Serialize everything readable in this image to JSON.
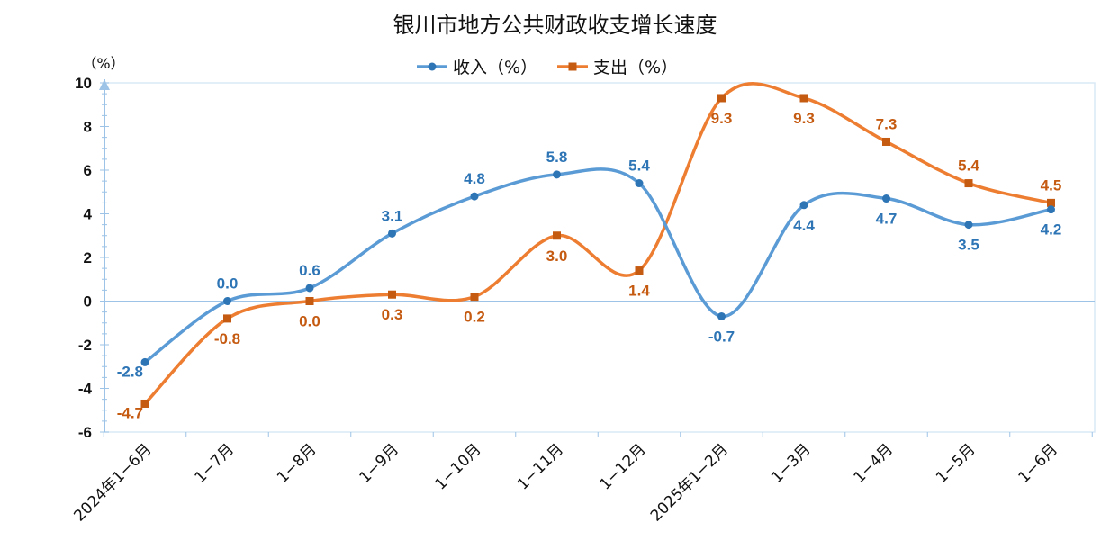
{
  "chart_data": {
    "type": "line",
    "title": "银川市地方公共财政收支增长速度",
    "ylabel": "（%）",
    "xlabel": "",
    "ylim": [
      -6,
      10
    ],
    "yticks": [
      "10",
      "8",
      "6",
      "4",
      "2",
      "0",
      "-2",
      "-4",
      "-6"
    ],
    "ytick_values": [
      10,
      8,
      6,
      4,
      2,
      0,
      -2,
      -4,
      -6
    ],
    "categories": [
      "2024年1−6月",
      "1−7月",
      "1−8月",
      "1−9月",
      "1−10月",
      "1−11月",
      "1−12月",
      "2025年1−2月",
      "1−3月",
      "1−4月",
      "1−5月",
      "1−6月"
    ],
    "legend_position": "top-center",
    "grid": false,
    "series": [
      {
        "name": "收入（%）",
        "color": "#5B9BD5",
        "label_color": "#2E75B6",
        "marker": "circle",
        "values": [
          -2.8,
          0.0,
          0.6,
          3.1,
          4.8,
          5.8,
          5.4,
          -0.7,
          4.4,
          4.7,
          3.5,
          4.2
        ],
        "labels": [
          "-2.8",
          "0.0",
          "0.6",
          "3.1",
          "4.8",
          "5.8",
          "5.4",
          "-0.7",
          "4.4",
          "4.7",
          "3.5",
          "4.2"
        ],
        "label_side": [
          "left",
          "above",
          "above",
          "above",
          "above",
          "above",
          "above",
          "below",
          "below",
          "below",
          "below",
          "below"
        ]
      },
      {
        "name": "支出（%）",
        "color": "#ED7D31",
        "label_color": "#C55A11",
        "marker": "square",
        "values": [
          -4.7,
          -0.8,
          0.0,
          0.3,
          0.2,
          3.0,
          1.4,
          9.3,
          9.3,
          7.3,
          5.4,
          4.5
        ],
        "labels": [
          "-4.7",
          "-0.8",
          "0.0",
          "0.3",
          "0.2",
          "3.0",
          "1.4",
          "9.3",
          "9.3",
          "7.3",
          "5.4",
          "4.5"
        ],
        "label_side": [
          "left",
          "below",
          "below",
          "below",
          "below",
          "below",
          "below",
          "below",
          "below",
          "above",
          "above",
          "above"
        ]
      }
    ]
  }
}
